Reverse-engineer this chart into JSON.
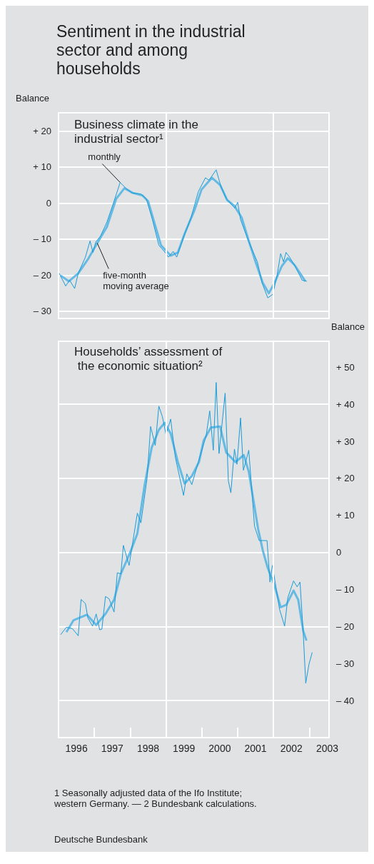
{
  "chart_data": [
    {
      "type": "line",
      "title": "Sentiment in the industrial sector and among households",
      "subtitle": "Business climate in the industrial sector¹",
      "ylabel": "Balance",
      "xlim": [
        1996,
        2003.55
      ],
      "ylim": [
        -32,
        25
      ],
      "yticks": [
        {
          "value": 20,
          "label": "+ 20"
        },
        {
          "value": 10,
          "label": "+ 10"
        },
        0,
        {
          "value": -10,
          "label": "– 10"
        },
        {
          "value": -20,
          "label": "– 20"
        },
        {
          "value": -30,
          "label": "– 30"
        }
      ],
      "tick_labels": "y",
      "grid": "y",
      "ref_lines": [
        {
          "axis": "x",
          "value": 1999,
          "color": "#ffffff"
        },
        {
          "axis": "x",
          "value": 2002,
          "color": "#ffffff"
        }
      ],
      "series": [
        {
          "name": "monthly",
          "color": "#1a9bd7",
          "x": [
            1996.02,
            1996.2,
            1996.31,
            1996.45,
            1996.55,
            1996.75,
            1996.88,
            1996.96,
            1997.04,
            1997.17,
            1997.35,
            1997.55,
            1997.72,
            1997.88,
            1998.05,
            1998.3,
            1998.45,
            1998.62,
            1998.8,
            1998.95,
            1999.07,
            1999.2,
            1999.3,
            1999.5,
            1999.7,
            1999.9,
            2000.1,
            2000.2,
            2000.4,
            2000.52,
            2000.68,
            2000.92,
            2001.0,
            2001.08,
            2001.3,
            2001.55,
            2001.68,
            2001.84,
            2001.98,
            2002.1,
            2002.2,
            2002.28,
            2002.35,
            2002.45,
            2002.6,
            2002.8,
            2002.93
          ],
          "values": [
            -19.5,
            -23,
            -21.4,
            -23.7,
            -19.5,
            -15,
            -10.5,
            -13.7,
            -10.8,
            -9.2,
            -5.3,
            0.5,
            5.7,
            4.1,
            2.8,
            2.5,
            1.2,
            -4.6,
            -11.7,
            -13.4,
            -15,
            -13.4,
            -15,
            -9.2,
            -4,
            3.1,
            7,
            6.3,
            9.2,
            5,
            1.2,
            -1.4,
            0.2,
            -4.6,
            -10.5,
            -16.3,
            -22.1,
            -26.3,
            -25.3,
            -20.1,
            -14,
            -16.3,
            -13.7,
            -15,
            -17.5,
            -21.4,
            -21.7
          ]
        },
        {
          "name": "five-month moving average",
          "color": "#4fb3e3",
          "x": [
            1996.06,
            1996.29,
            1996.55,
            1996.82,
            1997.08,
            1997.35,
            1997.61,
            1997.84,
            1998.07,
            1998.34,
            1998.5,
            1998.67,
            1998.86,
            1999.13,
            1999.33,
            1999.52,
            1999.79,
            1999.99,
            2000.28,
            2000.51,
            2000.71,
            2000.91,
            2001.11,
            2001.31,
            2001.5,
            2001.7,
            2001.87,
            2002.03,
            2002.23,
            2002.4,
            2002.59,
            2002.83,
            2002.89
          ],
          "values": [
            -20.1,
            -21.7,
            -19.5,
            -15.6,
            -11.1,
            -6.6,
            1.2,
            4.1,
            2.8,
            2.1,
            0.5,
            -5.3,
            -11.7,
            -14.6,
            -13.7,
            -8.5,
            -2.1,
            3.7,
            7,
            5,
            0.8,
            -0.8,
            -4,
            -10.5,
            -16.3,
            -22.1,
            -25,
            -22.1,
            -17.5,
            -15.3,
            -17.2,
            -20.8,
            -21.7
          ]
        }
      ]
    },
    {
      "type": "line",
      "title": "Households’ assessment of the economic situation²",
      "y2label": "Balance",
      "xlim": [
        1996,
        2003.55
      ],
      "y2lim": [
        -50,
        57
      ],
      "y2ticks": [
        {
          "value": 50,
          "label": "+ 50"
        },
        {
          "value": 40,
          "label": "+ 40"
        },
        {
          "value": 30,
          "label": "+ 30"
        },
        {
          "value": 20,
          "label": "+ 20"
        },
        {
          "value": 10,
          "label": "+ 10"
        },
        0,
        {
          "value": -10,
          "label": "– 10"
        },
        {
          "value": -20,
          "label": "– 20"
        },
        {
          "value": -30,
          "label": "– 30"
        },
        {
          "value": -40,
          "label": "– 40"
        }
      ],
      "xticks": [
        {
          "value": 1996,
          "label": null
        },
        {
          "value": 1996.5,
          "label": "1996"
        },
        {
          "value": 1997,
          "label": null
        },
        {
          "value": 1997.5,
          "label": "1997"
        },
        {
          "value": 1998,
          "label": null
        },
        {
          "value": 1998.5,
          "label": "1998"
        },
        {
          "value": 1999,
          "label": null
        },
        {
          "value": 1999.5,
          "label": "1999"
        },
        {
          "value": 2000,
          "label": null
        },
        {
          "value": 2000.5,
          "label": "2000"
        },
        {
          "value": 2001,
          "label": null
        },
        {
          "value": 2001.5,
          "label": "2001"
        },
        {
          "value": 2002,
          "label": null
        },
        {
          "value": 2002.5,
          "label": "2002"
        },
        {
          "value": 2003,
          "label": null
        },
        {
          "value": 2003.5,
          "label": "2003"
        }
      ],
      "grid": "y",
      "ref_lines": [
        {
          "axis": "x",
          "value": 1999,
          "color": "#ffffff"
        },
        {
          "axis": "x",
          "value": 2002,
          "color": "#ffffff"
        }
      ],
      "annotations": [
        "1 Seasonally adjusted data of the Ifo Institute; western Germany. — 2 Bundesbank calculations.",
        "Deutsche Bundesbank"
      ],
      "series": [
        {
          "color": "#1a9bd7",
          "axis": "y2",
          "x": [
            1996.06,
            1996.22,
            1996.39,
            1996.55,
            1996.63,
            1996.75,
            1996.82,
            1996.95,
            1997.05,
            1997.15,
            1997.21,
            1997.31,
            1997.41,
            1997.55,
            1997.64,
            1997.74,
            1997.81,
            1997.97,
            1998.2,
            1998.3,
            1998.47,
            1998.57,
            1998.7,
            1998.8,
            1998.9,
            1999.0,
            1999.13,
            1999.26,
            1999.49,
            1999.58,
            1999.72,
            1999.92,
            2000.12,
            2000.22,
            2000.32,
            2000.4,
            2000.48,
            2000.65,
            2000.74,
            2000.81,
            2000.91,
            2000.98,
            2001.08,
            2001.16,
            2001.31,
            2001.47,
            2001.6,
            2001.82,
            2001.9,
            2001.97,
            2002.17,
            2002.31,
            2002.4,
            2002.56,
            2002.66,
            2002.74,
            2002.83,
            2002.9,
            2002.99,
            2003.08
          ],
          "values": [
            -22.2,
            -20.2,
            -20.6,
            -22.5,
            -12.7,
            -13.8,
            -17.7,
            -19.9,
            -16.6,
            -20.9,
            -20.7,
            -11.9,
            -12.5,
            -16.1,
            -5.5,
            -5.8,
            1.9,
            -3.5,
            10.6,
            8,
            19.9,
            34,
            28.9,
            39.5,
            36.6,
            31.8,
            36,
            25.7,
            15.4,
            21.2,
            18.3,
            25,
            31.5,
            38.2,
            27.6,
            45.9,
            26.7,
            43,
            19.3,
            16.1,
            27.9,
            23.8,
            36.3,
            22.2,
            27.6,
            7.1,
            3.2,
            3.2,
            -8,
            -3.5,
            -15.4,
            -19.9,
            -12.2,
            -7.7,
            -9.3,
            -8,
            -21.8,
            -35.3,
            -30.2,
            -27
          ]
        },
        {
          "color": "#4fb3e3",
          "axis": "y2",
          "x": [
            1996.22,
            1996.42,
            1996.79,
            1997.05,
            1997.31,
            1997.55,
            1997.74,
            1998.0,
            1998.2,
            1998.4,
            1998.6,
            1998.8,
            1998.96,
            1999.13,
            1999.33,
            1999.52,
            1999.72,
            1999.92,
            2000.05,
            2000.25,
            2000.51,
            2000.68,
            2000.94,
            2001.17,
            2001.31,
            2001.44,
            2001.57,
            2001.7,
            2001.83,
            2002.03,
            2002.2,
            2002.36,
            2002.56,
            2002.69,
            2002.83,
            2002.92
          ],
          "values": [
            -21.5,
            -18.3,
            -16.8,
            -19.6,
            -16.6,
            -12.8,
            -5.8,
            0,
            5.1,
            18,
            28.3,
            33.1,
            35,
            32.1,
            24.4,
            18.6,
            20.6,
            24.4,
            30.2,
            33.7,
            34,
            27,
            24.4,
            26.3,
            21.8,
            14.1,
            6.4,
            0.6,
            -3.9,
            -9,
            -14.8,
            -14.1,
            -10.3,
            -12.8,
            -21.2,
            -23.8
          ]
        }
      ]
    }
  ]
}
